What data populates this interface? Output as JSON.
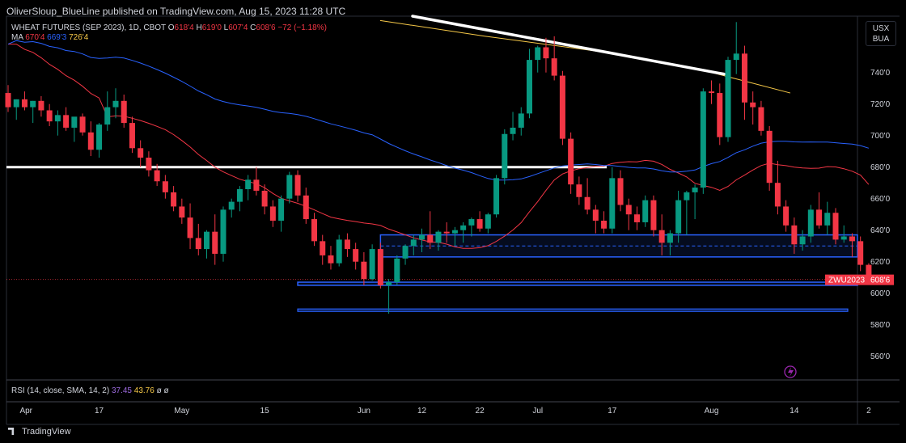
{
  "header": {
    "publisher_line": "OliverSloup_BlueLine published on TradingView.com, Aug 15, 2023 11:28 UTC"
  },
  "legend": {
    "symbol": "WHEAT FUTURES (SEP 2023), 1D, CBOT",
    "open_label": "O",
    "open": "618'4",
    "high_label": "H",
    "high": "619'0",
    "low_label": "L",
    "low": "607'4",
    "close_label": "C",
    "close": "608'6",
    "change": "−72 (−1.18%)",
    "ma_label": "MA",
    "ma_values": [
      "670'4",
      "669'3",
      "726'4"
    ]
  },
  "currency_badge": {
    "line1": "USX",
    "line2": "BUA"
  },
  "price_tag": {
    "symbol": "ZWU2023",
    "value": "608'6"
  },
  "rsi": {
    "label": "RSI (14, close, SMA, 14, 2)",
    "value1": "37.45",
    "value2": "43.76",
    "extra": "ø  ø"
  },
  "footer": {
    "brand": "TradingView"
  },
  "colors": {
    "up": "#089981",
    "down": "#f23645",
    "ma_red": "#f23645",
    "ma_blue": "#2962ff",
    "ma_yellow": "#f7c948",
    "zone": "#2962ff",
    "trendline": "#ffffff"
  },
  "chart_data": {
    "type": "candlestick",
    "title": "WHEAT FUTURES (SEP 2023), 1D, CBOT",
    "y_axis": {
      "ticks": [
        "560'0",
        "580'0",
        "600'0",
        "620'0",
        "640'0",
        "660'0",
        "680'0",
        "700'0",
        "720'0",
        "740'0"
      ],
      "range": [
        548,
        770
      ]
    },
    "x_axis": {
      "ticks": [
        "Apr",
        "17",
        "May",
        "15",
        "Jun",
        "12",
        "22",
        "Jul",
        "17",
        "Aug",
        "14",
        "2"
      ]
    },
    "candles": [
      {
        "o": 727,
        "h": 732,
        "l": 715,
        "c": 718
      },
      {
        "o": 718,
        "h": 723,
        "l": 710,
        "c": 723
      },
      {
        "o": 723,
        "h": 728,
        "l": 716,
        "c": 718
      },
      {
        "o": 718,
        "h": 722,
        "l": 708,
        "c": 722
      },
      {
        "o": 722,
        "h": 725,
        "l": 712,
        "c": 716
      },
      {
        "o": 716,
        "h": 720,
        "l": 706,
        "c": 709
      },
      {
        "o": 709,
        "h": 716,
        "l": 700,
        "c": 713
      },
      {
        "o": 713,
        "h": 718,
        "l": 703,
        "c": 705
      },
      {
        "o": 705,
        "h": 710,
        "l": 696,
        "c": 712
      },
      {
        "o": 712,
        "h": 714,
        "l": 700,
        "c": 702
      },
      {
        "o": 702,
        "h": 709,
        "l": 687,
        "c": 691
      },
      {
        "o": 691,
        "h": 708,
        "l": 686,
        "c": 707
      },
      {
        "o": 707,
        "h": 728,
        "l": 703,
        "c": 718
      },
      {
        "o": 718,
        "h": 730,
        "l": 711,
        "c": 722
      },
      {
        "o": 722,
        "h": 726,
        "l": 705,
        "c": 708
      },
      {
        "o": 708,
        "h": 712,
        "l": 689,
        "c": 692
      },
      {
        "o": 692,
        "h": 697,
        "l": 680,
        "c": 686
      },
      {
        "o": 686,
        "h": 690,
        "l": 674,
        "c": 678
      },
      {
        "o": 678,
        "h": 682,
        "l": 668,
        "c": 671
      },
      {
        "o": 671,
        "h": 675,
        "l": 660,
        "c": 664
      },
      {
        "o": 664,
        "h": 668,
        "l": 652,
        "c": 655
      },
      {
        "o": 655,
        "h": 660,
        "l": 644,
        "c": 648
      },
      {
        "o": 648,
        "h": 657,
        "l": 628,
        "c": 635
      },
      {
        "o": 635,
        "h": 644,
        "l": 624,
        "c": 628
      },
      {
        "o": 628,
        "h": 640,
        "l": 622,
        "c": 639
      },
      {
        "o": 639,
        "h": 650,
        "l": 618,
        "c": 625
      },
      {
        "o": 625,
        "h": 655,
        "l": 620,
        "c": 653
      },
      {
        "o": 653,
        "h": 660,
        "l": 648,
        "c": 658
      },
      {
        "o": 658,
        "h": 668,
        "l": 652,
        "c": 666
      },
      {
        "o": 666,
        "h": 675,
        "l": 659,
        "c": 672
      },
      {
        "o": 672,
        "h": 680,
        "l": 662,
        "c": 665
      },
      {
        "o": 665,
        "h": 669,
        "l": 650,
        "c": 655
      },
      {
        "o": 655,
        "h": 659,
        "l": 642,
        "c": 646
      },
      {
        "o": 646,
        "h": 662,
        "l": 639,
        "c": 660
      },
      {
        "o": 660,
        "h": 677,
        "l": 657,
        "c": 675
      },
      {
        "o": 675,
        "h": 678,
        "l": 658,
        "c": 662
      },
      {
        "o": 662,
        "h": 667,
        "l": 644,
        "c": 647
      },
      {
        "o": 647,
        "h": 651,
        "l": 630,
        "c": 633
      },
      {
        "o": 633,
        "h": 637,
        "l": 618,
        "c": 624
      },
      {
        "o": 624,
        "h": 630,
        "l": 615,
        "c": 619
      },
      {
        "o": 619,
        "h": 637,
        "l": 617,
        "c": 634
      },
      {
        "o": 634,
        "h": 638,
        "l": 623,
        "c": 628
      },
      {
        "o": 628,
        "h": 632,
        "l": 615,
        "c": 620
      },
      {
        "o": 620,
        "h": 626,
        "l": 605,
        "c": 609
      },
      {
        "o": 609,
        "h": 631,
        "l": 608,
        "c": 628
      },
      {
        "o": 628,
        "h": 632,
        "l": 603,
        "c": 605
      },
      {
        "o": 605,
        "h": 609,
        "l": 587,
        "c": 607
      },
      {
        "o": 607,
        "h": 624,
        "l": 605,
        "c": 622
      },
      {
        "o": 622,
        "h": 631,
        "l": 618,
        "c": 630
      },
      {
        "o": 630,
        "h": 637,
        "l": 624,
        "c": 634
      },
      {
        "o": 634,
        "h": 641,
        "l": 626,
        "c": 637
      },
      {
        "o": 637,
        "h": 652,
        "l": 628,
        "c": 632
      },
      {
        "o": 632,
        "h": 640,
        "l": 627,
        "c": 639
      },
      {
        "o": 639,
        "h": 645,
        "l": 632,
        "c": 638
      },
      {
        "o": 638,
        "h": 642,
        "l": 630,
        "c": 640
      },
      {
        "o": 640,
        "h": 645,
        "l": 632,
        "c": 643
      },
      {
        "o": 643,
        "h": 648,
        "l": 636,
        "c": 647
      },
      {
        "o": 647,
        "h": 652,
        "l": 639,
        "c": 641
      },
      {
        "o": 641,
        "h": 651,
        "l": 638,
        "c": 650
      },
      {
        "o": 650,
        "h": 675,
        "l": 648,
        "c": 673
      },
      {
        "o": 673,
        "h": 704,
        "l": 669,
        "c": 701
      },
      {
        "o": 701,
        "h": 715,
        "l": 697,
        "c": 705
      },
      {
        "o": 705,
        "h": 718,
        "l": 700,
        "c": 714
      },
      {
        "o": 714,
        "h": 755,
        "l": 711,
        "c": 748
      },
      {
        "o": 748,
        "h": 757,
        "l": 740,
        "c": 756
      },
      {
        "o": 756,
        "h": 762,
        "l": 740,
        "c": 749
      },
      {
        "o": 749,
        "h": 763,
        "l": 735,
        "c": 738
      },
      {
        "o": 738,
        "h": 741,
        "l": 694,
        "c": 698
      },
      {
        "o": 698,
        "h": 702,
        "l": 663,
        "c": 669
      },
      {
        "o": 669,
        "h": 674,
        "l": 656,
        "c": 661
      },
      {
        "o": 661,
        "h": 673,
        "l": 650,
        "c": 653
      },
      {
        "o": 653,
        "h": 656,
        "l": 638,
        "c": 646
      },
      {
        "o": 646,
        "h": 652,
        "l": 638,
        "c": 641
      },
      {
        "o": 641,
        "h": 680,
        "l": 638,
        "c": 673
      },
      {
        "o": 673,
        "h": 678,
        "l": 652,
        "c": 656
      },
      {
        "o": 656,
        "h": 660,
        "l": 640,
        "c": 650
      },
      {
        "o": 650,
        "h": 655,
        "l": 640,
        "c": 645
      },
      {
        "o": 645,
        "h": 662,
        "l": 642,
        "c": 659
      },
      {
        "o": 659,
        "h": 662,
        "l": 636,
        "c": 640
      },
      {
        "o": 640,
        "h": 650,
        "l": 624,
        "c": 632
      },
      {
        "o": 632,
        "h": 640,
        "l": 624,
        "c": 638
      },
      {
        "o": 638,
        "h": 665,
        "l": 632,
        "c": 659
      },
      {
        "o": 659,
        "h": 665,
        "l": 637,
        "c": 664
      },
      {
        "o": 664,
        "h": 669,
        "l": 647,
        "c": 667
      },
      {
        "o": 667,
        "h": 730,
        "l": 663,
        "c": 728
      },
      {
        "o": 728,
        "h": 735,
        "l": 720,
        "c": 727
      },
      {
        "o": 727,
        "h": 733,
        "l": 694,
        "c": 699
      },
      {
        "o": 699,
        "h": 750,
        "l": 696,
        "c": 748
      },
      {
        "o": 748,
        "h": 772,
        "l": 739,
        "c": 752
      },
      {
        "o": 752,
        "h": 757,
        "l": 710,
        "c": 721
      },
      {
        "o": 721,
        "h": 728,
        "l": 707,
        "c": 718
      },
      {
        "o": 718,
        "h": 722,
        "l": 700,
        "c": 703
      },
      {
        "o": 703,
        "h": 706,
        "l": 665,
        "c": 670
      },
      {
        "o": 670,
        "h": 684,
        "l": 650,
        "c": 655
      },
      {
        "o": 655,
        "h": 659,
        "l": 639,
        "c": 643
      },
      {
        "o": 643,
        "h": 648,
        "l": 625,
        "c": 631
      },
      {
        "o": 631,
        "h": 640,
        "l": 627,
        "c": 636
      },
      {
        "o": 636,
        "h": 656,
        "l": 632,
        "c": 653
      },
      {
        "o": 653,
        "h": 664,
        "l": 641,
        "c": 643
      },
      {
        "o": 643,
        "h": 658,
        "l": 637,
        "c": 651
      },
      {
        "o": 651,
        "h": 654,
        "l": 631,
        "c": 634
      },
      {
        "o": 634,
        "h": 643,
        "l": 632,
        "c": 636
      },
      {
        "o": 636,
        "h": 638,
        "l": 623,
        "c": 633
      },
      {
        "o": 633,
        "h": 636,
        "l": 614,
        "c": 618
      },
      {
        "o": 618,
        "h": 619,
        "l": 607.5,
        "c": 608.75
      }
    ],
    "moving_averages": [
      {
        "name": "MA",
        "value": "670'4",
        "color": "#f23645"
      },
      {
        "name": "MA",
        "value": "669'3",
        "color": "#2962ff"
      },
      {
        "name": "MA",
        "value": "726'4",
        "color": "#f7c948"
      }
    ],
    "horizontal_levels": [
      680,
      637,
      623,
      607,
      605,
      589
    ],
    "zones": [
      [
        623,
        637
      ],
      [
        605,
        607
      ]
    ],
    "trendline": {
      "from": [
        42,
        774
      ],
      "to": [
        100,
        738
      ]
    },
    "last_price": 608.75,
    "rsi": {
      "rsi": 37.45,
      "sma": 43.76
    }
  }
}
